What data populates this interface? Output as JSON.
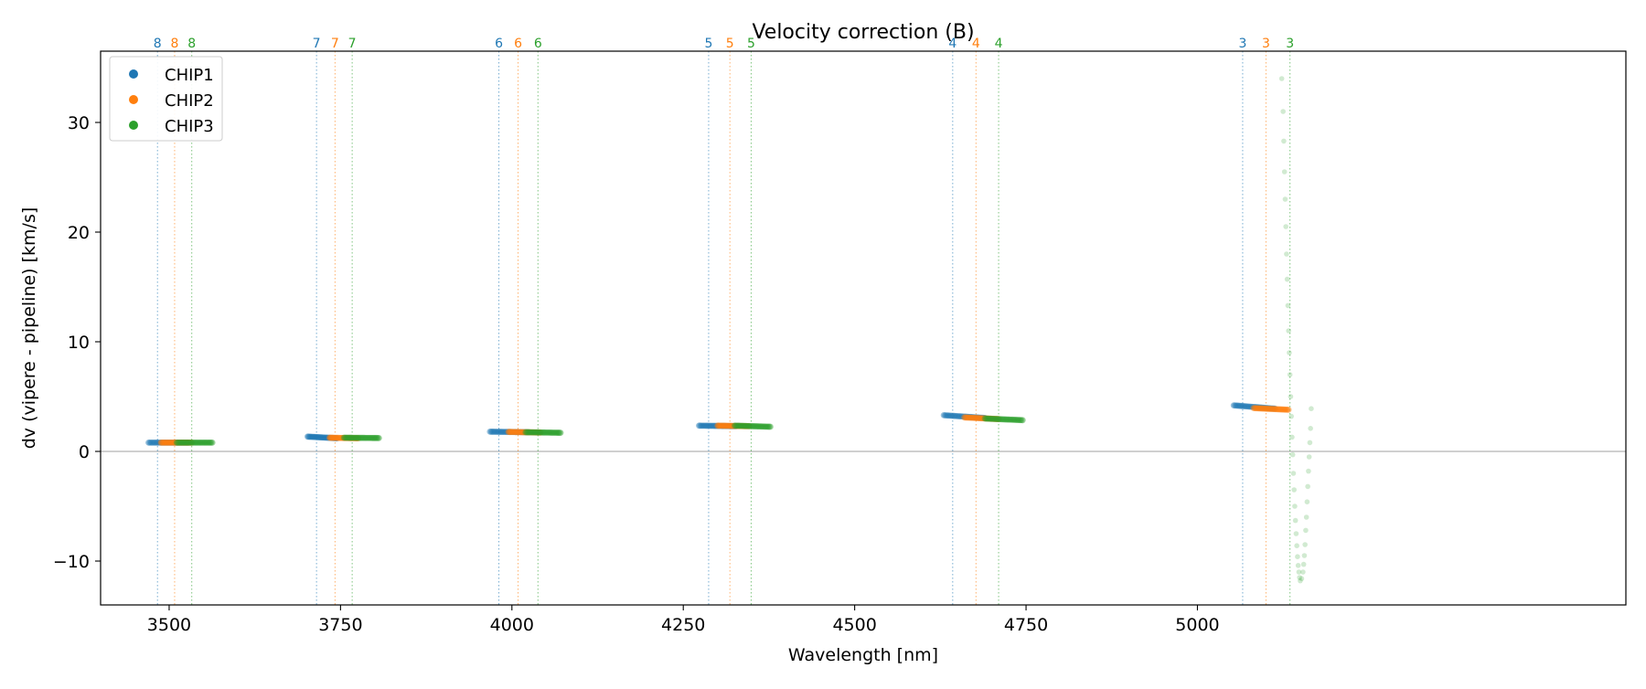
{
  "chart_data": {
    "type": "scatter",
    "title": "Velocity correction (B)",
    "xlabel": "Wavelength [nm]",
    "ylabel": "dv (vipere - pipeline) [km/s]",
    "xlim": [
      3400,
      5625
    ],
    "ylim": [
      -14,
      36.5
    ],
    "xticks": [
      3500,
      3750,
      4000,
      4250,
      4500,
      4750,
      5000
    ],
    "yticks": [
      -10,
      0,
      10,
      20,
      30
    ],
    "xtick_labels": [
      "3500",
      "3750",
      "4000",
      "4250",
      "4500",
      "4750",
      "5000"
    ],
    "ytick_labels": [
      "−10",
      "0",
      "10",
      "20",
      "30"
    ],
    "zero_line": 0,
    "grid": false,
    "legend_position": "top-left",
    "series": [
      {
        "name": "CHIP1",
        "color": "#1f77b4",
        "segments": [
          {
            "order": "8",
            "x0": 3470,
            "x1": 3528,
            "y0": 0.8,
            "y1": 0.8
          },
          {
            "order": "7",
            "x0": 3702,
            "x1": 3745,
            "y0": 1.35,
            "y1": 1.2
          },
          {
            "order": "6",
            "x0": 3968,
            "x1": 4024,
            "y0": 1.8,
            "y1": 1.75
          },
          {
            "order": "5",
            "x0": 4273,
            "x1": 4327,
            "y0": 2.35,
            "y1": 2.3
          },
          {
            "order": "4",
            "x0": 4630,
            "x1": 4690,
            "y0": 3.3,
            "y1": 3.05
          },
          {
            "order": "3",
            "x0": 5053,
            "x1": 5113,
            "y0": 4.2,
            "y1": 3.9
          }
        ],
        "order_lines": [
          {
            "x": 3483,
            "label": "8"
          },
          {
            "x": 3715,
            "label": "7"
          },
          {
            "x": 3981,
            "label": "6"
          },
          {
            "x": 4287,
            "label": "5"
          },
          {
            "x": 4643,
            "label": "4"
          },
          {
            "x": 5066,
            "label": "3"
          }
        ]
      },
      {
        "name": "CHIP2",
        "color": "#ff7f0e",
        "segments": [
          {
            "order": "8",
            "x0": 3488,
            "x1": 3533,
            "y0": 0.8,
            "y1": 0.8
          },
          {
            "order": "7",
            "x0": 3734,
            "x1": 3776,
            "y0": 1.25,
            "y1": 1.2
          },
          {
            "order": "6",
            "x0": 3995,
            "x1": 4042,
            "y0": 1.78,
            "y1": 1.72
          },
          {
            "order": "5",
            "x0": 4300,
            "x1": 4346,
            "y0": 2.35,
            "y1": 2.3
          },
          {
            "order": "4",
            "x0": 4660,
            "x1": 4710,
            "y0": 3.1,
            "y1": 2.95
          },
          {
            "order": "3",
            "x0": 5082,
            "x1": 5133,
            "y0": 3.95,
            "y1": 3.8
          }
        ],
        "order_lines": [
          {
            "x": 3508,
            "label": "8"
          },
          {
            "x": 3742,
            "label": "7"
          },
          {
            "x": 4009,
            "label": "6"
          },
          {
            "x": 4318,
            "label": "5"
          },
          {
            "x": 4677,
            "label": "4"
          },
          {
            "x": 5100,
            "label": "3"
          }
        ]
      },
      {
        "name": "CHIP3",
        "color": "#2ca02c",
        "segments": [
          {
            "order": "8",
            "x0": 3511,
            "x1": 3563,
            "y0": 0.8,
            "y1": 0.8
          },
          {
            "order": "7",
            "x0": 3755,
            "x1": 3806,
            "y0": 1.25,
            "y1": 1.22
          },
          {
            "order": "6",
            "x0": 4020,
            "x1": 4071,
            "y0": 1.75,
            "y1": 1.7
          },
          {
            "order": "5",
            "x0": 4325,
            "x1": 4377,
            "y0": 2.35,
            "y1": 2.25
          },
          {
            "order": "4",
            "x0": 4690,
            "x1": 4745,
            "y0": 3.0,
            "y1": 2.85
          }
        ],
        "order_lines": [
          {
            "x": 3533,
            "label": "8"
          },
          {
            "x": 3767,
            "label": "7"
          },
          {
            "x": 4038,
            "label": "6"
          },
          {
            "x": 4349,
            "label": "5"
          },
          {
            "x": 4710,
            "label": "4"
          },
          {
            "x": 5135,
            "label": "3"
          }
        ],
        "outlier_curve": {
          "order": "3",
          "points": [
            [
              5123,
              34.0
            ],
            [
              5125,
              31.0
            ],
            [
              5126,
              28.3
            ],
            [
              5127,
              25.5
            ],
            [
              5128,
              23.0
            ],
            [
              5129,
              20.5
            ],
            [
              5130,
              18.0
            ],
            [
              5131,
              15.7
            ],
            [
              5132,
              13.3
            ],
            [
              5133,
              11.0
            ],
            [
              5134,
              9.0
            ],
            [
              5135,
              7.0
            ],
            [
              5136,
              5.0
            ],
            [
              5137,
              3.2
            ],
            [
              5138,
              1.3
            ],
            [
              5139,
              -0.3
            ],
            [
              5140,
              -2.0
            ],
            [
              5141,
              -3.5
            ],
            [
              5142,
              -5.0
            ],
            [
              5143,
              -6.3
            ],
            [
              5144,
              -7.5
            ],
            [
              5145,
              -8.6
            ],
            [
              5146,
              -9.6
            ],
            [
              5147,
              -10.4
            ],
            [
              5148,
              -11.0
            ],
            [
              5149,
              -11.5
            ],
            [
              5150,
              -11.8
            ],
            [
              5152,
              -11.6
            ],
            [
              5154,
              -11.0
            ],
            [
              5155,
              -10.3
            ],
            [
              5156,
              -9.5
            ],
            [
              5157,
              -8.5
            ],
            [
              5158,
              -7.2
            ],
            [
              5159,
              -6.0
            ],
            [
              5160,
              -4.6
            ],
            [
              5161,
              -3.2
            ],
            [
              5162,
              -1.8
            ],
            [
              5163,
              -0.5
            ],
            [
              5164,
              0.8
            ],
            [
              5165,
              2.1
            ],
            [
              5166,
              3.9
            ]
          ]
        }
      }
    ]
  }
}
